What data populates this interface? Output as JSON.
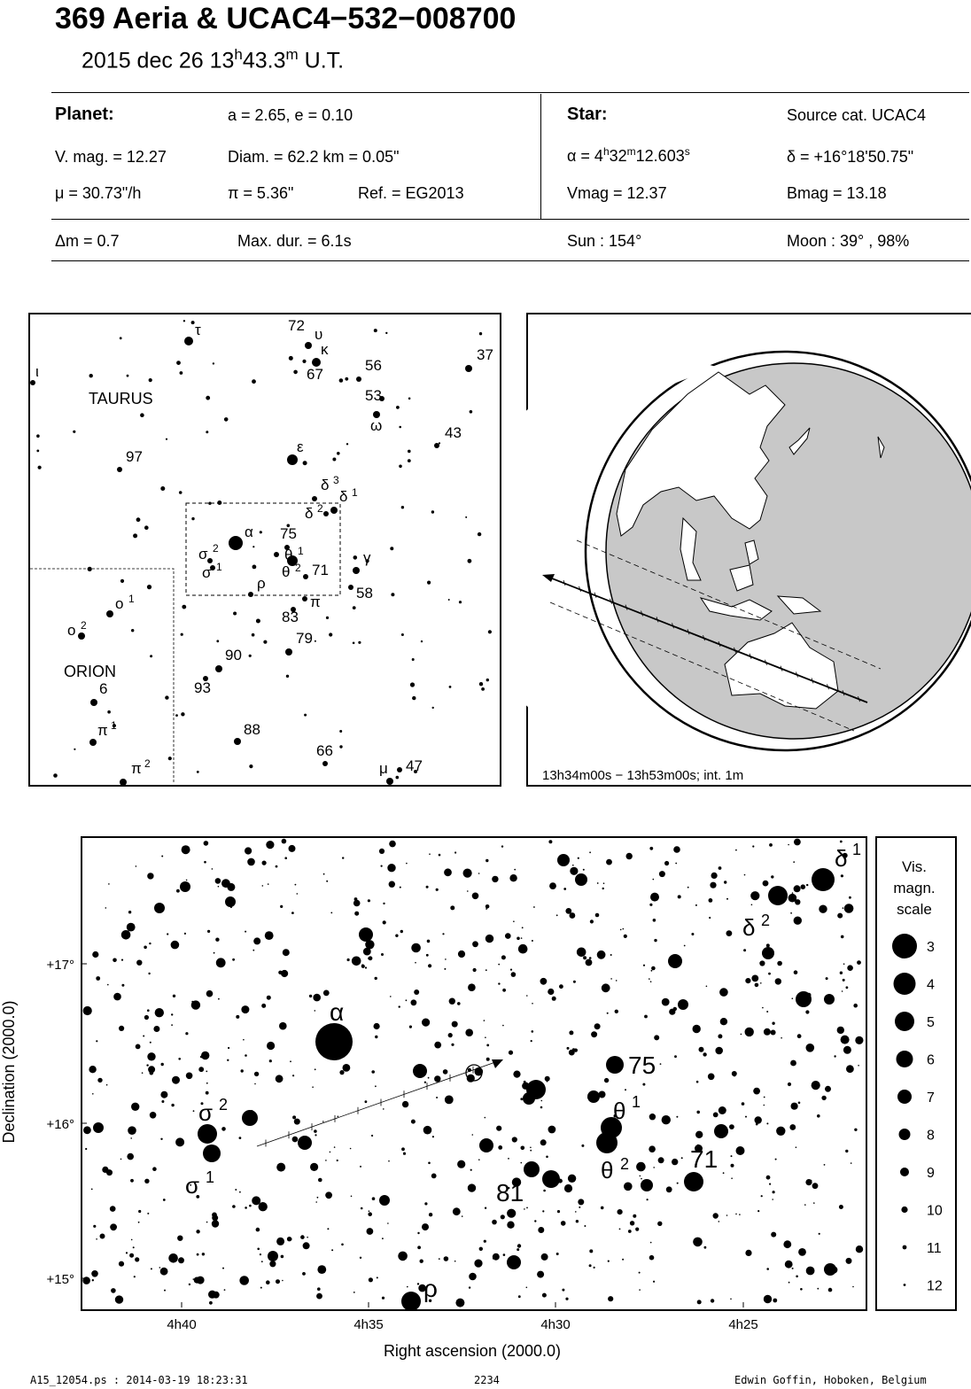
{
  "header": {
    "title": "369 Aeria  &  UCAC4−532−008700",
    "subtitle_date": "2015 dec 26  13",
    "subtitle_h": "h",
    "subtitle_min": "43.3",
    "subtitle_m": "m",
    "subtitle_ut": " U.T."
  },
  "info": {
    "planet_label": "Planet:",
    "orbit": "a = 2.65, e = 0.10",
    "vmag": "V. mag. = 12.27",
    "diam": "Diam. = 62.2 km = 0.05\"",
    "mu": "μ =  30.73\"/h",
    "parallax": "π =  5.36\"",
    "ref": "Ref. = EG2013",
    "star_label": "Star:",
    "source": "Source cat.  UCAC4",
    "ra_prefix": "α =  4",
    "ra_h": "h",
    "ra_min": "32",
    "ra_m": "m",
    "ra_sec": "12.603",
    "ra_s": "s",
    "dec": "δ = +16°18'50.75\"",
    "star_vmag": "Vmag = 12.37",
    "star_bmag": "Bmag = 13.18",
    "dm": "Δm = 0.7",
    "maxdur": "Max. dur. = 6.1s",
    "sun": "Sun : 154°",
    "moon": "Moon :  39° , 98%"
  },
  "finder": {
    "constellations": [
      "TAURUS",
      "ORION"
    ],
    "labels": [
      {
        "t": "τ",
        "x": 220,
        "y": 378
      },
      {
        "t": "72",
        "x": 325,
        "y": 373
      },
      {
        "t": "υ",
        "x": 355,
        "y": 383
      },
      {
        "t": "κ",
        "x": 362,
        "y": 400
      },
      {
        "t": "56",
        "x": 412,
        "y": 418
      },
      {
        "t": "67",
        "x": 346,
        "y": 428
      },
      {
        "t": "53",
        "x": 412,
        "y": 452
      },
      {
        "t": "ω",
        "x": 418,
        "y": 486
      },
      {
        "t": "37",
        "x": 538,
        "y": 406
      },
      {
        "t": "ι",
        "x": 40,
        "y": 425
      },
      {
        "t": "43",
        "x": 502,
        "y": 494
      },
      {
        "t": "97",
        "x": 142,
        "y": 521
      },
      {
        "t": "ε",
        "x": 335,
        "y": 510
      },
      {
        "t": "δ",
        "x": 362,
        "y": 553
      },
      {
        "t": "3",
        "x": 376,
        "y": 546
      },
      {
        "t": "δ",
        "x": 383,
        "y": 566
      },
      {
        "t": "1",
        "x": 397,
        "y": 560
      },
      {
        "t": "δ",
        "x": 344,
        "y": 585
      },
      {
        "t": "2",
        "x": 358,
        "y": 578
      },
      {
        "t": "α",
        "x": 276,
        "y": 606
      },
      {
        "t": "75",
        "x": 316,
        "y": 608
      },
      {
        "t": "θ",
        "x": 321,
        "y": 632
      },
      {
        "t": "1",
        "x": 336,
        "y": 626
      },
      {
        "t": "σ",
        "x": 224,
        "y": 631
      },
      {
        "t": "2",
        "x": 240,
        "y": 623
      },
      {
        "t": "γ",
        "x": 410,
        "y": 635
      },
      {
        "t": "σ",
        "x": 228,
        "y": 652
      },
      {
        "t": "1",
        "x": 244,
        "y": 644
      },
      {
        "t": "θ",
        "x": 318,
        "y": 651
      },
      {
        "t": "2",
        "x": 333,
        "y": 645
      },
      {
        "t": "71",
        "x": 352,
        "y": 649
      },
      {
        "t": "ρ",
        "x": 290,
        "y": 664
      },
      {
        "t": "58",
        "x": 402,
        "y": 675
      },
      {
        "t": "π",
        "x": 350,
        "y": 685
      },
      {
        "t": "ο",
        "x": 130,
        "y": 687
      },
      {
        "t": "1",
        "x": 145,
        "y": 680
      },
      {
        "t": "ο",
        "x": 76,
        "y": 717
      },
      {
        "t": "2",
        "x": 91,
        "y": 710
      },
      {
        "t": "83",
        "x": 318,
        "y": 702
      },
      {
        "t": "79",
        "x": 334,
        "y": 726
      },
      {
        "t": "90",
        "x": 254,
        "y": 745
      },
      {
        "t": "6",
        "x": 112,
        "y": 783
      },
      {
        "t": "93",
        "x": 219,
        "y": 782
      },
      {
        "t": "π",
        "x": 110,
        "y": 830
      },
      {
        "t": "1",
        "x": 125,
        "y": 823
      },
      {
        "t": "88",
        "x": 275,
        "y": 829
      },
      {
        "t": "66",
        "x": 357,
        "y": 853
      },
      {
        "t": "μ",
        "x": 428,
        "y": 873
      },
      {
        "t": "47",
        "x": 458,
        "y": 870
      },
      {
        "t": "π",
        "x": 148,
        "y": 873
      },
      {
        "t": "2",
        "x": 163,
        "y": 866
      }
    ]
  },
  "globe": {
    "caption": "13h34m00s − 13h53m00s; int.  1m"
  },
  "chart": {
    "y_label": "Declination (2000.0)",
    "x_label": "Right ascension (2000.0)",
    "x_ticks": [
      "4h40",
      "4h35",
      "4h30",
      "4h25"
    ],
    "y_ticks": [
      "+17°",
      "+16°",
      "+15°"
    ],
    "star_labels": [
      {
        "t": "α",
        "x": 372,
        "y": 1152,
        "s": 28
      },
      {
        "t": "σ",
        "x": 224,
        "y": 1265,
        "s": 26
      },
      {
        "t": "2",
        "x": 247,
        "y": 1253,
        "s": 18
      },
      {
        "t": "σ",
        "x": 209,
        "y": 1347,
        "s": 26
      },
      {
        "t": "1",
        "x": 232,
        "y": 1335,
        "s": 18
      },
      {
        "t": "75",
        "x": 709,
        "y": 1212,
        "s": 28
      },
      {
        "t": "θ",
        "x": 692,
        "y": 1263,
        "s": 26
      },
      {
        "t": "1",
        "x": 713,
        "y": 1250,
        "s": 18
      },
      {
        "t": "θ",
        "x": 678,
        "y": 1330,
        "s": 26
      },
      {
        "t": "2",
        "x": 700,
        "y": 1320,
        "s": 18
      },
      {
        "t": "71",
        "x": 779,
        "y": 1318,
        "s": 28
      },
      {
        "t": "81",
        "x": 560,
        "y": 1356,
        "s": 28
      },
      {
        "t": "ρ",
        "x": 478,
        "y": 1464,
        "s": 28
      },
      {
        "t": "δ",
        "x": 942,
        "y": 978,
        "s": 26
      },
      {
        "t": "1",
        "x": 962,
        "y": 965,
        "s": 18
      },
      {
        "t": "δ",
        "x": 838,
        "y": 1056,
        "s": 26
      },
      {
        "t": "2",
        "x": 859,
        "y": 1045,
        "s": 18
      }
    ]
  },
  "legend": {
    "title": [
      "Vis.",
      "magn.",
      "scale"
    ],
    "mags": [
      "3",
      "4",
      "5",
      "6",
      "7",
      "8",
      "9",
      "10",
      "11",
      "12"
    ]
  },
  "footer": {
    "left": "A15_12054.ps : 2014-03-19 18:23:31",
    "center": "2234",
    "right": "Edwin Goffin, Hoboken, Belgium"
  }
}
